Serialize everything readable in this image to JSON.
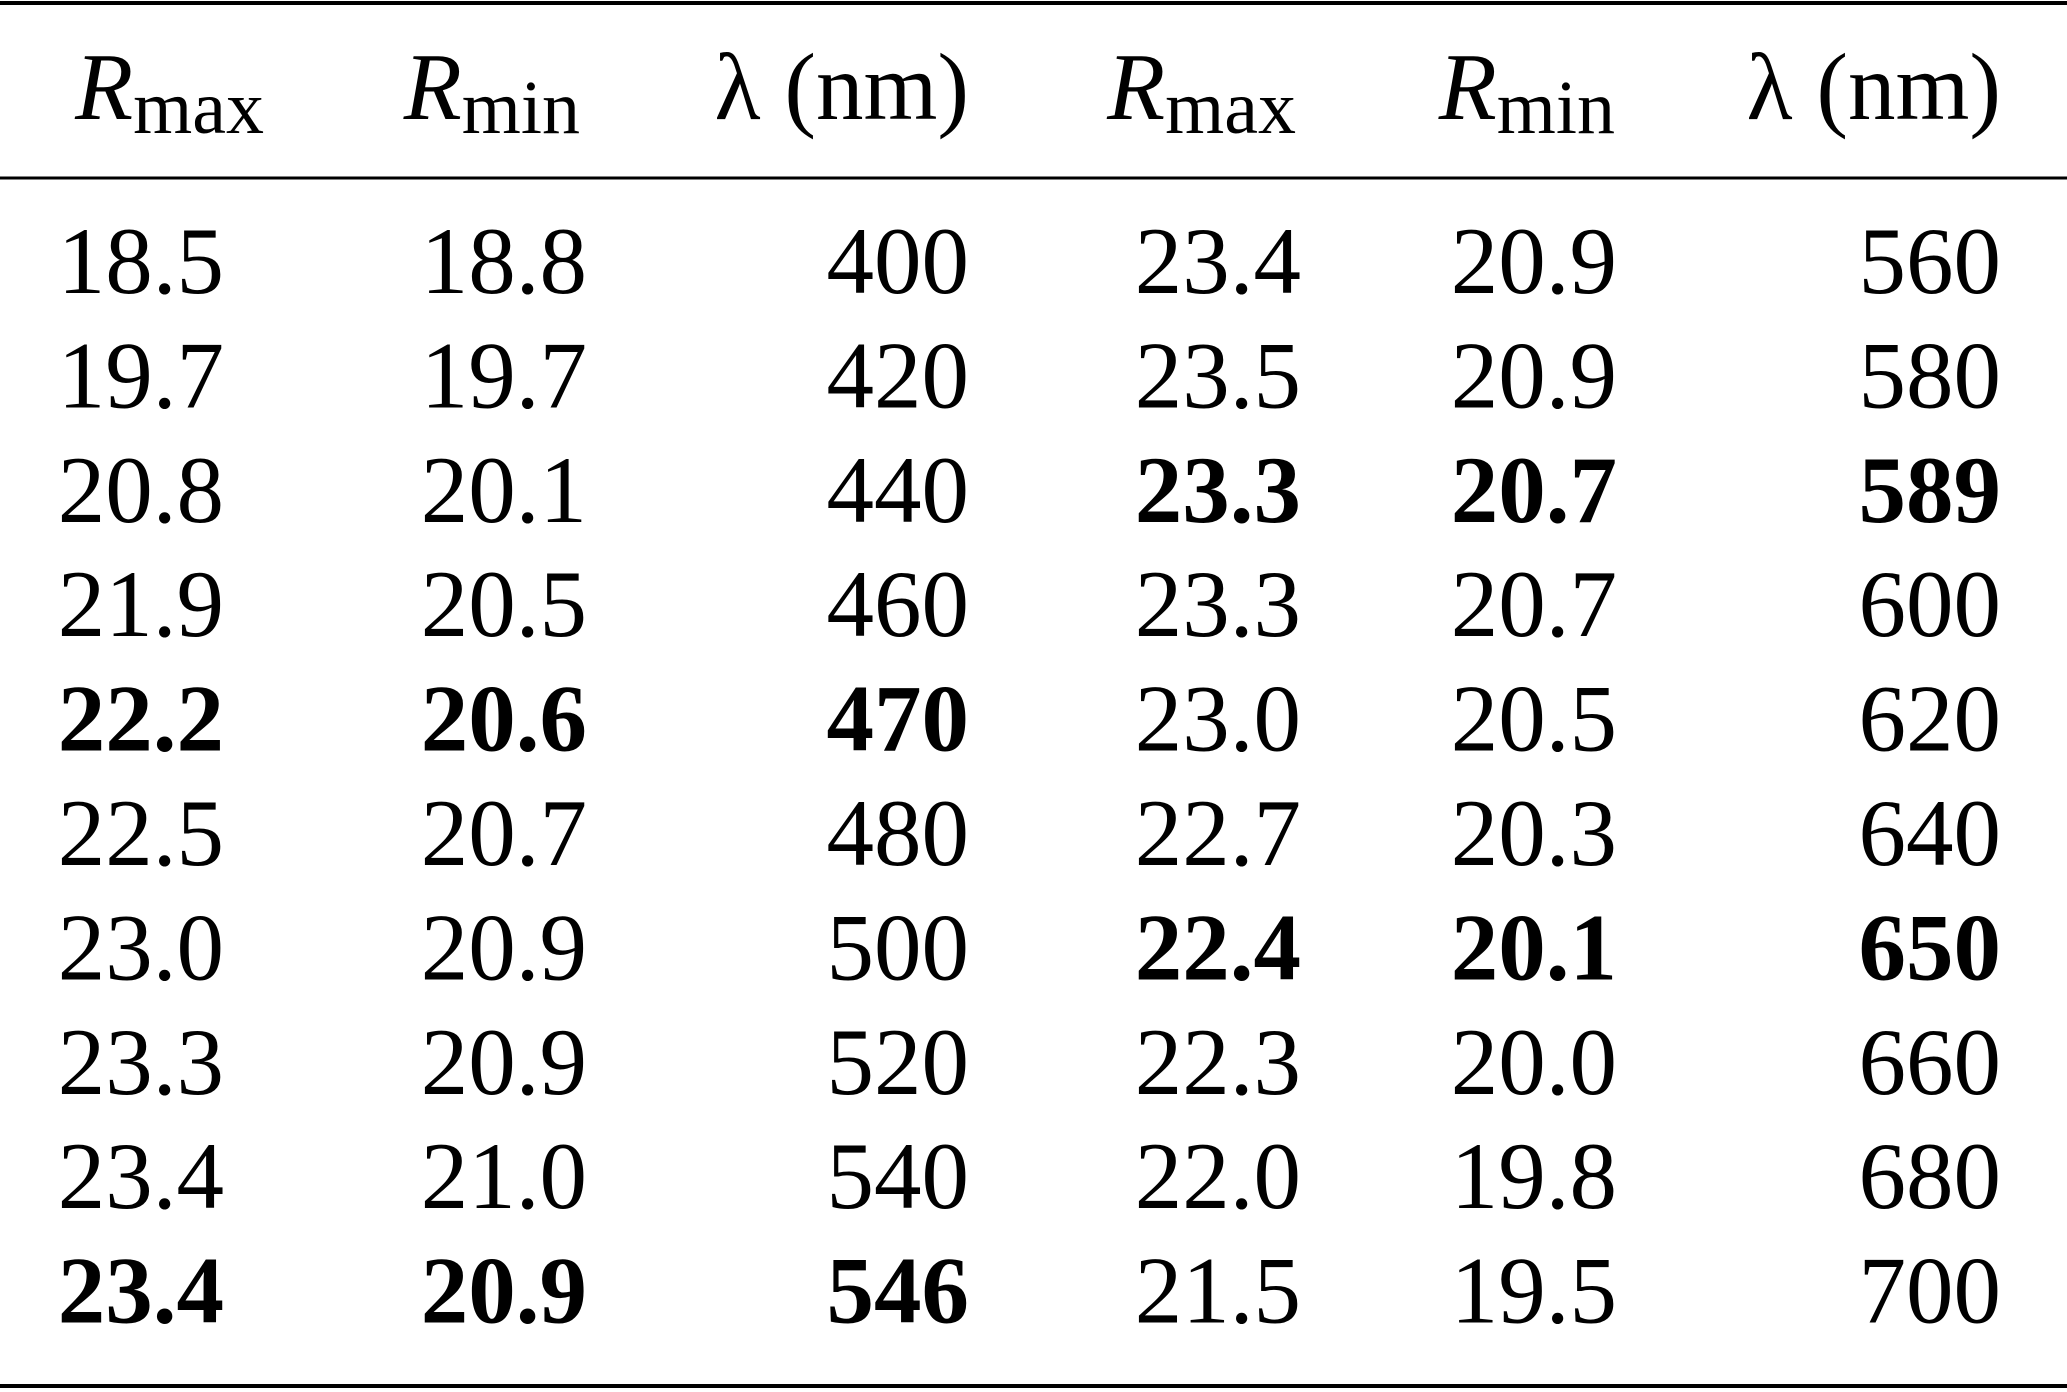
{
  "table": {
    "header": [
      {
        "main": "R",
        "sub": "max"
      },
      {
        "main": "R",
        "sub": "min"
      },
      "λ (nm)",
      {
        "main": "R",
        "sub": "max"
      },
      {
        "main": "R",
        "sub": "min"
      },
      "λ (nm)"
    ],
    "rows": [
      [
        "18.5",
        "18.8",
        "400",
        "23.4",
        "20.9",
        "560"
      ],
      [
        "19.7",
        "19.7",
        "420",
        "23.5",
        "20.9",
        "580"
      ],
      [
        "20.8",
        "20.1",
        "440",
        "23.3",
        "20.7",
        "589"
      ],
      [
        "21.9",
        "20.5",
        "460",
        "23.3",
        "20.7",
        "600"
      ],
      [
        "22.2",
        "20.6",
        "470",
        "23.0",
        "20.5",
        "620"
      ],
      [
        "22.5",
        "20.7",
        "480",
        "22.7",
        "20.3",
        "640"
      ],
      [
        "23.0",
        "20.9",
        "500",
        "22.4",
        "20.1",
        "650"
      ],
      [
        "23.3",
        "20.9",
        "520",
        "22.3",
        "20.0",
        "660"
      ],
      [
        "23.4",
        "21.0",
        "540",
        "22.0",
        "19.8",
        "680"
      ],
      [
        "23.4",
        "20.9",
        "546",
        "21.5",
        "19.5",
        "700"
      ]
    ],
    "bold_rows": [
      [
        4,
        9
      ],
      [
        2,
        6
      ]
    ]
  }
}
